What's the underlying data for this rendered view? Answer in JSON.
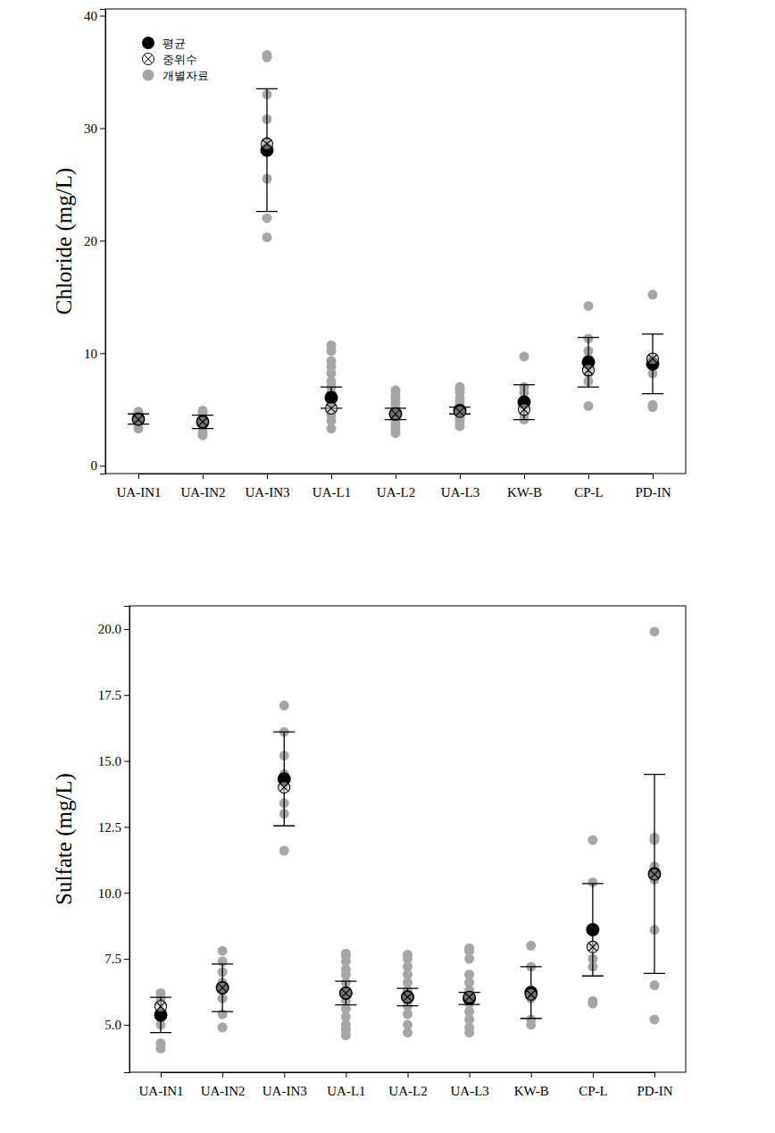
{
  "chart_data": [
    {
      "type": "dot",
      "y_label": "Chloride (mg/L)",
      "categories": [
        "UA-IN1",
        "UA-IN2",
        "UA-IN3",
        "UA-L1",
        "UA-L2",
        "UA-L3",
        "KW-B",
        "CP-L",
        "PD-IN"
      ],
      "ylim": [
        -0.7,
        40.6
      ],
      "yticks": [
        0,
        10,
        20,
        30,
        40
      ],
      "grid": false,
      "legend": "top-left",
      "series": [
        {
          "name": "평균",
          "color": "#000000",
          "marker": "circle",
          "values": [
            4.15,
            3.9,
            28.05,
            6.05,
            4.6,
            4.9,
            5.65,
            9.2,
            9.05
          ],
          "error": [
            0.45,
            0.6,
            5.45,
            0.95,
            0.5,
            0.3,
            1.55,
            2.2,
            2.65
          ]
        },
        {
          "name": "중위수",
          "color": "#000000",
          "marker": "circle-x",
          "values": [
            4.1,
            3.9,
            28.6,
            5.1,
            4.6,
            4.8,
            5.0,
            8.5,
            9.5
          ]
        },
        {
          "name": "개별자료",
          "color": "#a6a6a6",
          "marker": "circle",
          "values": [
            [
              3.3,
              3.7,
              4.0,
              4.3,
              4.6,
              4.8
            ],
            [
              2.7,
              3.0,
              3.5,
              3.9,
              4.3,
              4.7,
              4.9
            ],
            [
              20.3,
              22.0,
              25.5,
              28.3,
              28.8,
              30.8,
              33.0,
              36.3,
              36.5
            ],
            [
              3.3,
              4.0,
              4.5,
              5.0,
              5.1,
              5.2,
              5.5,
              6.0,
              6.5,
              7.0,
              7.5,
              8.2,
              8.8,
              9.3,
              10.2,
              10.7
            ],
            [
              2.9,
              3.3,
              3.7,
              4.0,
              4.3,
              4.6,
              4.9,
              5.2,
              5.6,
              6.0,
              6.3,
              6.7
            ],
            [
              3.5,
              3.9,
              4.2,
              4.5,
              4.8,
              5.0,
              5.3,
              5.7,
              6.0,
              6.5,
              6.8,
              7.0
            ],
            [
              4.1,
              4.5,
              5.0,
              5.5,
              6.5,
              7.0,
              9.7
            ],
            [
              5.3,
              7.5,
              8.2,
              8.7,
              9.5,
              10.2,
              11.3,
              14.2
            ],
            [
              5.2,
              5.4,
              8.2,
              9.3,
              9.6,
              15.2
            ]
          ]
        }
      ]
    },
    {
      "type": "dot",
      "y_label": "Sulfate (mg/L)",
      "categories": [
        "UA-IN1",
        "UA-IN2",
        "UA-IN3",
        "UA-L1",
        "UA-L2",
        "UA-L3",
        "KW-B",
        "CP-L",
        "PD-IN"
      ],
      "ylim": [
        3.2,
        20.88
      ],
      "yticks": [
        {
          "value": 5,
          "label": "5.0"
        },
        7.5,
        {
          "value": 10,
          "label": "10.0"
        },
        12.5,
        {
          "value": 15,
          "label": "15.0"
        },
        17.5,
        {
          "value": 20,
          "label": "20.0"
        }
      ],
      "grid": false,
      "series": [
        {
          "color": "#000000",
          "marker": "circle",
          "values": [
            5.37,
            6.4,
            14.32,
            6.2,
            6.05,
            6.0,
            6.22,
            8.6,
            10.72
          ],
          "error": [
            0.67,
            0.9,
            1.78,
            0.45,
            0.33,
            0.23,
            0.98,
            1.75,
            3.77
          ]
        },
        {
          "color": "#000000",
          "marker": "circle-x",
          "values": [
            5.7,
            6.4,
            14.0,
            6.2,
            6.05,
            6.05,
            6.15,
            7.95,
            10.7
          ]
        },
        {
          "color": "#a6a6a6",
          "marker": "circle",
          "values": [
            [
              4.1,
              4.3,
              5.0,
              5.5,
              5.8,
              6.0,
              6.2
            ],
            [
              4.9,
              5.4,
              6.0,
              6.4,
              6.6,
              7.0,
              7.4,
              7.8
            ],
            [
              11.6,
              13.0,
              13.4,
              14.1,
              14.5,
              15.2,
              16.1,
              17.1
            ],
            [
              4.6,
              4.8,
              5.0,
              5.3,
              5.6,
              5.9,
              6.1,
              6.3,
              6.6,
              6.9,
              7.1,
              7.4,
              7.6,
              7.7
            ],
            [
              4.7,
              5.0,
              5.4,
              5.7,
              6.0,
              6.3,
              6.6,
              6.9,
              7.2,
              7.5,
              7.65
            ],
            [
              4.7,
              4.9,
              5.2,
              5.5,
              5.8,
              6.1,
              6.3,
              6.6,
              6.9,
              7.5,
              7.8,
              7.9
            ],
            [
              5.0,
              5.2,
              6.0,
              6.3,
              7.2,
              8.0
            ],
            [
              5.8,
              5.9,
              7.2,
              7.5,
              8.0,
              10.4,
              12.0
            ],
            [
              5.2,
              6.5,
              8.6,
              10.5,
              10.9,
              11.0,
              12.0,
              12.1,
              19.9
            ]
          ]
        }
      ]
    }
  ]
}
